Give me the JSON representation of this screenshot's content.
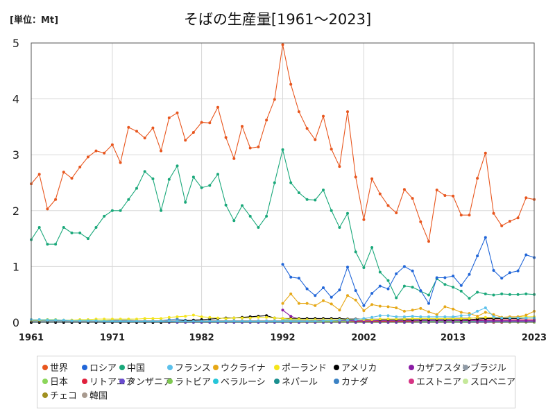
{
  "unit_label": "[単位：Mt]",
  "chart_data": {
    "type": "line",
    "title": "そばの生産量[1961～2023]",
    "xlabel": "",
    "ylabel": "",
    "xlim": [
      1961,
      2023
    ],
    "ylim": [
      0,
      5
    ],
    "x_ticks": [
      "1961",
      "1971",
      "1982",
      "1992",
      "2002",
      "2013",
      "2023"
    ],
    "y_ticks": [
      "0",
      "1",
      "2",
      "3",
      "4",
      "5"
    ],
    "grid": true,
    "legend_position": "bottom",
    "series": [
      {
        "name": "世界",
        "color": "#e8561e",
        "start": 1961,
        "values": [
          2.48,
          2.65,
          2.03,
          2.2,
          2.69,
          2.58,
          2.78,
          2.96,
          3.07,
          3.03,
          3.18,
          2.86,
          3.49,
          3.42,
          3.3,
          3.48,
          3.07,
          3.66,
          3.75,
          3.26,
          3.4,
          3.58,
          3.57,
          3.85,
          3.31,
          2.93,
          3.51,
          3.12,
          3.14,
          3.62,
          3.99,
          4.97,
          4.26,
          3.77,
          3.47,
          3.27,
          3.69,
          3.1,
          2.79,
          3.77,
          2.6,
          1.84,
          2.57,
          2.3,
          2.09,
          1.96,
          2.38,
          2.22,
          1.8,
          1.45,
          2.37,
          2.27,
          2.26,
          1.92,
          1.92,
          2.58,
          3.03,
          1.95,
          1.73,
          1.81,
          1.87,
          2.23,
          2.2
        ]
      },
      {
        "name": "ロシア",
        "color": "#2166d8",
        "start": 1992,
        "values": [
          1.04,
          0.81,
          0.79,
          0.6,
          0.48,
          0.62,
          0.45,
          0.58,
          0.99,
          0.57,
          0.3,
          0.52,
          0.65,
          0.6,
          0.87,
          1.0,
          0.92,
          0.57,
          0.34,
          0.8,
          0.8,
          0.83,
          0.66,
          0.86,
          1.19,
          1.52,
          0.93,
          0.79,
          0.89,
          0.92,
          1.21,
          1.16
        ]
      },
      {
        "name": "中国",
        "color": "#1aa87a",
        "start": 1961,
        "values": [
          1.48,
          1.7,
          1.4,
          1.4,
          1.7,
          1.6,
          1.6,
          1.5,
          1.7,
          1.9,
          2.0,
          2.0,
          2.2,
          2.4,
          2.7,
          2.57,
          2.0,
          2.56,
          2.8,
          2.15,
          2.6,
          2.41,
          2.45,
          2.65,
          2.1,
          1.82,
          2.09,
          1.9,
          1.7,
          1.9,
          2.5,
          3.09,
          2.5,
          2.32,
          2.2,
          2.19,
          2.37,
          2.0,
          1.7,
          1.95,
          1.26,
          0.98,
          1.34,
          0.9,
          0.75,
          0.44,
          0.65,
          0.63,
          0.56,
          0.49,
          0.78,
          0.68,
          0.63,
          0.56,
          0.43,
          0.54,
          0.51,
          0.49,
          0.51,
          0.5,
          0.5,
          0.51,
          0.5
        ]
      },
      {
        "name": "フランス",
        "color": "#5bc0eb",
        "start": 1961,
        "values": [
          0.05,
          0.05,
          0.04,
          0.04,
          0.04,
          0.03,
          0.03,
          0.03,
          0.03,
          0.02,
          0.02,
          0.02,
          0.02,
          0.02,
          0.02,
          0.02,
          0.02,
          0.02,
          0.02,
          0.02,
          0.02,
          0.02,
          0.02,
          0.02,
          0.02,
          0.02,
          0.02,
          0.02,
          0.02,
          0.02,
          0.02,
          0.02,
          0.02,
          0.02,
          0.02,
          0.02,
          0.03,
          0.03,
          0.04,
          0.04,
          0.05,
          0.07,
          0.09,
          0.12,
          0.12,
          0.1,
          0.1,
          0.11,
          0.1,
          0.1,
          0.1,
          0.1,
          0.1,
          0.12,
          0.13,
          0.2,
          0.26,
          0.1,
          0.08,
          0.08,
          0.08,
          0.08,
          0.08
        ]
      },
      {
        "name": "ウクライナ",
        "color": "#e6a817",
        "start": 1992,
        "values": [
          0.34,
          0.51,
          0.34,
          0.34,
          0.3,
          0.39,
          0.33,
          0.22,
          0.48,
          0.4,
          0.21,
          0.32,
          0.29,
          0.28,
          0.26,
          0.2,
          0.22,
          0.25,
          0.19,
          0.14,
          0.28,
          0.24,
          0.18,
          0.16,
          0.11,
          0.18,
          0.14,
          0.09,
          0.1,
          0.1,
          0.13,
          0.2
        ]
      },
      {
        "name": "ポーランド",
        "color": "#f5e51b",
        "start": 1961,
        "values": [
          0.04,
          0.04,
          0.04,
          0.04,
          0.04,
          0.04,
          0.05,
          0.05,
          0.06,
          0.06,
          0.06,
          0.06,
          0.06,
          0.06,
          0.07,
          0.07,
          0.07,
          0.09,
          0.1,
          0.11,
          0.13,
          0.1,
          0.09,
          0.08,
          0.07,
          0.08,
          0.08,
          0.08,
          0.09,
          0.09,
          0.08,
          0.07,
          0.06,
          0.06,
          0.05,
          0.05,
          0.05,
          0.05,
          0.05,
          0.05,
          0.05,
          0.05,
          0.05,
          0.06,
          0.06,
          0.06,
          0.06,
          0.07,
          0.07,
          0.07,
          0.07,
          0.07,
          0.07,
          0.07,
          0.07,
          0.09,
          0.09,
          0.09,
          0.09,
          0.09,
          0.1,
          0.1,
          0.1
        ]
      },
      {
        "name": "アメリカ",
        "color": "#000000",
        "start": 1961,
        "values": [
          0.0,
          0.0,
          0.0,
          0.0,
          0.0,
          0.0,
          0.0,
          0.0,
          0.0,
          0.0,
          0.0,
          0.0,
          0.0,
          0.0,
          0.0,
          0.0,
          0.0,
          0.01,
          0.02,
          0.03,
          0.04,
          0.05,
          0.06,
          0.07,
          0.08,
          0.08,
          0.09,
          0.1,
          0.11,
          0.12,
          0.08,
          0.07,
          0.07,
          0.07,
          0.07,
          0.07,
          0.07,
          0.07,
          0.07,
          0.06,
          0.06,
          0.06,
          0.05,
          0.05,
          0.05,
          0.05,
          0.05,
          0.05,
          0.05,
          0.05,
          0.05,
          0.05,
          0.05,
          0.05,
          0.05,
          0.06,
          0.07,
          0.07,
          0.07,
          0.07,
          0.07,
          0.08,
          0.08
        ]
      },
      {
        "name": "カザフスタン",
        "color": "#8a1ca5",
        "start": 1992,
        "values": [
          0.22,
          0.11,
          0.06,
          0.05,
          0.05,
          0.03,
          0.03,
          0.03,
          0.03,
          0.03,
          0.03,
          0.03,
          0.03,
          0.03,
          0.03,
          0.03,
          0.03,
          0.03,
          0.03,
          0.03,
          0.03,
          0.03,
          0.03,
          0.03,
          0.03,
          0.03,
          0.03,
          0.03,
          0.03,
          0.03,
          0.03,
          0.03
        ]
      },
      {
        "name": "ブラジル",
        "color": "#8f9aa6",
        "start": 1961,
        "values": [
          0.02,
          0.02,
          0.02,
          0.02,
          0.02,
          0.02,
          0.02,
          0.02,
          0.02,
          0.02,
          0.03,
          0.03,
          0.03,
          0.03,
          0.03,
          0.03,
          0.03,
          0.03,
          0.03,
          0.03,
          0.03,
          0.03,
          0.03,
          0.03,
          0.03,
          0.03,
          0.03,
          0.03,
          0.03,
          0.03,
          0.03,
          0.03,
          0.03,
          0.03,
          0.03,
          0.03,
          0.04,
          0.04,
          0.04,
          0.05,
          0.05,
          0.05,
          0.06,
          0.06,
          0.06,
          0.06,
          0.07,
          0.07,
          0.07,
          0.07,
          0.07,
          0.07,
          0.08,
          0.08,
          0.08,
          0.08,
          0.08,
          0.08,
          0.08,
          0.08,
          0.08,
          0.08,
          0.08
        ]
      },
      {
        "name": "日本",
        "color": "#8bd65a",
        "start": 1961,
        "values": [
          0.05,
          0.05,
          0.05,
          0.05,
          0.04,
          0.04,
          0.04,
          0.04,
          0.03,
          0.03,
          0.03,
          0.03,
          0.03,
          0.02,
          0.02,
          0.02,
          0.02,
          0.02,
          0.02,
          0.02,
          0.02,
          0.02,
          0.02,
          0.02,
          0.02,
          0.02,
          0.02,
          0.02,
          0.02,
          0.02,
          0.02,
          0.02,
          0.02,
          0.02,
          0.02,
          0.02,
          0.02,
          0.02,
          0.02,
          0.02,
          0.03,
          0.03,
          0.03,
          0.03,
          0.03,
          0.03,
          0.03,
          0.03,
          0.03,
          0.03,
          0.03,
          0.03,
          0.03,
          0.03,
          0.03,
          0.03,
          0.03,
          0.03,
          0.03,
          0.03,
          0.03,
          0.03,
          0.03
        ]
      },
      {
        "name": "リトアニア",
        "color": "#e0203c",
        "start": 1992,
        "values": [
          0.02,
          0.02,
          0.02,
          0.02,
          0.02,
          0.02,
          0.02,
          0.02,
          0.02,
          0.02,
          0.02,
          0.02,
          0.02,
          0.02,
          0.02,
          0.02,
          0.02,
          0.03,
          0.03,
          0.03,
          0.03,
          0.03,
          0.03,
          0.04,
          0.04,
          0.05,
          0.05,
          0.05,
          0.05,
          0.05,
          0.05,
          0.05
        ]
      },
      {
        "name": "タンザニア",
        "color": "#6a4ccf",
        "start": 1961,
        "values": [
          0.0,
          0.0,
          0.0,
          0.0,
          0.0,
          0.0,
          0.0,
          0.0,
          0.0,
          0.0,
          0.0,
          0.0,
          0.0,
          0.0,
          0.0,
          0.0,
          0.0,
          0.0,
          0.0,
          0.0,
          0.0,
          0.0,
          0.0,
          0.0,
          0.0,
          0.0,
          0.0,
          0.0,
          0.0,
          0.0,
          0.0,
          0.0,
          0.0,
          0.0,
          0.0,
          0.0,
          0.0,
          0.0,
          0.0,
          0.0,
          0.0,
          0.0,
          0.0,
          0.0,
          0.0,
          0.0,
          0.0,
          0.0,
          0.0,
          0.0,
          0.0,
          0.0,
          0.0,
          0.0,
          0.0,
          0.01,
          0.01,
          0.02,
          0.02,
          0.02,
          0.02,
          0.02,
          0.02
        ]
      },
      {
        "name": "ラトビア",
        "color": "#7ec850",
        "start": 1992,
        "values": [
          0.01,
          0.01,
          0.01,
          0.01,
          0.01,
          0.01,
          0.01,
          0.01,
          0.01,
          0.01,
          0.01,
          0.01,
          0.01,
          0.01,
          0.01,
          0.01,
          0.01,
          0.01,
          0.01,
          0.01,
          0.01,
          0.01,
          0.01,
          0.01,
          0.01,
          0.01,
          0.01,
          0.01,
          0.01,
          0.01,
          0.01,
          0.01
        ]
      },
      {
        "name": "ベラルーシ",
        "color": "#26c6d9",
        "start": 1992,
        "values": [
          0.05,
          0.05,
          0.05,
          0.05,
          0.04,
          0.04,
          0.04,
          0.03,
          0.03,
          0.03,
          0.02,
          0.02,
          0.02,
          0.02,
          0.02,
          0.02,
          0.02,
          0.02,
          0.02,
          0.02,
          0.02,
          0.02,
          0.02,
          0.02,
          0.02,
          0.02,
          0.02,
          0.02,
          0.02,
          0.02,
          0.02,
          0.02
        ]
      },
      {
        "name": "ネパール",
        "color": "#1a8f8f",
        "start": 1961,
        "values": [
          0.01,
          0.01,
          0.01,
          0.01,
          0.01,
          0.01,
          0.01,
          0.01,
          0.01,
          0.01,
          0.01,
          0.01,
          0.01,
          0.01,
          0.01,
          0.01,
          0.01,
          0.01,
          0.01,
          0.01,
          0.01,
          0.01,
          0.01,
          0.01,
          0.01,
          0.01,
          0.01,
          0.01,
          0.01,
          0.01,
          0.01,
          0.01,
          0.01,
          0.01,
          0.01,
          0.01,
          0.01,
          0.01,
          0.01,
          0.01,
          0.01,
          0.01,
          0.01,
          0.01,
          0.01,
          0.01,
          0.01,
          0.01,
          0.01,
          0.01,
          0.01,
          0.01,
          0.01,
          0.01,
          0.01,
          0.01,
          0.01,
          0.01,
          0.01,
          0.01,
          0.01,
          0.01,
          0.01
        ]
      },
      {
        "name": "カナダ",
        "color": "#3b82c4",
        "start": 1961,
        "values": [
          0.03,
          0.03,
          0.03,
          0.03,
          0.03,
          0.03,
          0.03,
          0.03,
          0.03,
          0.03,
          0.04,
          0.04,
          0.04,
          0.03,
          0.03,
          0.03,
          0.03,
          0.05,
          0.06,
          0.04,
          0.03,
          0.03,
          0.03,
          0.03,
          0.03,
          0.03,
          0.02,
          0.02,
          0.02,
          0.02,
          0.02,
          0.02,
          0.02,
          0.02,
          0.02,
          0.02,
          0.02,
          0.02,
          0.02,
          0.02,
          0.02,
          0.02,
          0.02,
          0.02,
          0.02,
          0.02,
          0.02,
          0.02,
          0.02,
          0.02,
          0.02,
          0.02,
          0.02,
          0.02,
          0.02,
          0.02,
          0.02,
          0.02,
          0.02,
          0.02,
          0.02,
          0.02,
          0.02
        ]
      },
      {
        "name": "エストニア",
        "color": "#d63384",
        "start": 1992,
        "values": [
          0.0,
          0.0,
          0.0,
          0.0,
          0.0,
          0.0,
          0.0,
          0.0,
          0.0,
          0.0,
          0.0,
          0.0,
          0.0,
          0.0,
          0.0,
          0.0,
          0.0,
          0.0,
          0.0,
          0.0,
          0.0,
          0.0,
          0.0,
          0.0,
          0.0,
          0.0,
          0.0,
          0.0,
          0.01,
          0.01,
          0.01,
          0.01
        ]
      },
      {
        "name": "スロベニア",
        "color": "#c5e89a",
        "start": 1992,
        "values": [
          0.0,
          0.0,
          0.0,
          0.0,
          0.0,
          0.0,
          0.0,
          0.0,
          0.0,
          0.0,
          0.0,
          0.0,
          0.0,
          0.0,
          0.0,
          0.0,
          0.0,
          0.0,
          0.0,
          0.0,
          0.0,
          0.0,
          0.0,
          0.0,
          0.0,
          0.0,
          0.0,
          0.0,
          0.0,
          0.0,
          0.0,
          0.0
        ]
      },
      {
        "name": "チェコ",
        "color": "#a09020",
        "start": 1993,
        "values": [
          0.0,
          0.0,
          0.0,
          0.0,
          0.0,
          0.0,
          0.0,
          0.0,
          0.0,
          0.0,
          0.0,
          0.0,
          0.0,
          0.0,
          0.0,
          0.0,
          0.0,
          0.0,
          0.0,
          0.0,
          0.0,
          0.0,
          0.0,
          0.0,
          0.0,
          0.0,
          0.0,
          0.0,
          0.0,
          0.0,
          0.0
        ]
      },
      {
        "name": "韓国",
        "color": "#a89a8f",
        "start": 1961,
        "values": [
          0.0,
          0.0,
          0.0,
          0.0,
          0.0,
          0.0,
          0.0,
          0.0,
          0.0,
          0.0,
          0.0,
          0.0,
          0.0,
          0.0,
          0.0,
          0.0,
          0.0,
          0.0,
          0.0,
          0.0,
          0.0,
          0.0,
          0.0,
          0.0,
          0.0,
          0.0,
          0.0,
          0.0,
          0.0,
          0.0,
          0.0,
          0.0,
          0.0,
          0.0,
          0.0,
          0.0,
          0.0,
          0.0,
          0.0,
          0.0,
          0.0,
          0.0,
          0.0,
          0.0,
          0.0,
          0.0,
          0.0,
          0.0,
          0.0,
          0.0,
          0.0,
          0.0,
          0.0,
          0.0,
          0.0,
          0.0,
          0.0,
          0.0,
          0.0,
          0.0,
          0.0,
          0.0,
          0.0
        ]
      }
    ]
  }
}
